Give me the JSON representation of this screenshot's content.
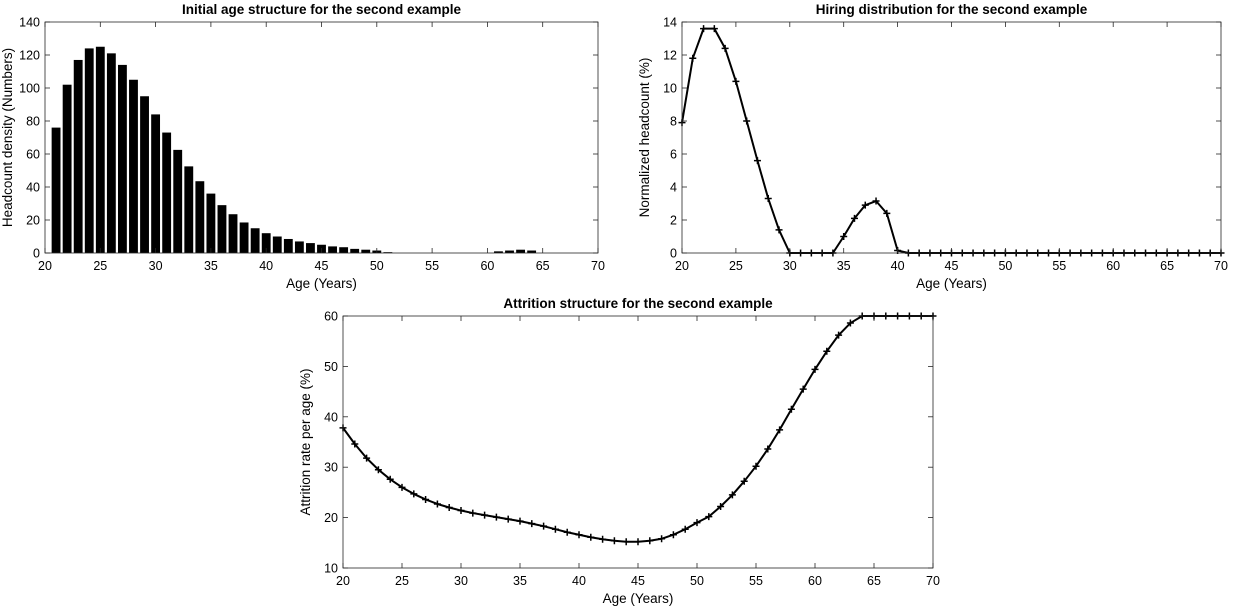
{
  "colors": {
    "background": "#ffffff",
    "ink": "#000000"
  },
  "chart_data": [
    {
      "type": "bar",
      "title": "Initial age structure for the second example",
      "xlabel": "Age (Years)",
      "ylabel": "Headcount density (Numbers)",
      "xlim": [
        20,
        70
      ],
      "ylim": [
        0,
        140
      ],
      "xticks": [
        20,
        25,
        30,
        35,
        40,
        45,
        50,
        55,
        60,
        65,
        70
      ],
      "yticks": [
        0,
        20,
        40,
        60,
        80,
        100,
        120,
        140
      ],
      "grid": false,
      "x": [
        21,
        22,
        23,
        24,
        25,
        26,
        27,
        28,
        29,
        30,
        31,
        32,
        33,
        34,
        35,
        36,
        37,
        38,
        39,
        40,
        41,
        42,
        43,
        44,
        45,
        46,
        47,
        48,
        49,
        50,
        51,
        52,
        53,
        54,
        55,
        56,
        57,
        58,
        59,
        60,
        61,
        62,
        63,
        64,
        65,
        66,
        67,
        68,
        69
      ],
      "values": [
        76,
        102,
        117,
        124,
        125,
        121,
        114,
        105,
        95,
        84,
        73,
        62.5,
        52.5,
        43.5,
        36,
        29,
        23.5,
        18.5,
        15,
        12,
        10,
        8.5,
        7,
        6,
        5,
        4,
        3.5,
        2.5,
        2,
        1.5,
        0.5,
        0,
        0,
        0,
        0,
        0,
        0,
        0,
        0,
        0,
        1,
        1.5,
        2,
        1.5,
        0,
        0,
        0,
        0,
        0
      ]
    },
    {
      "type": "line",
      "title": "Hiring distribution for the second example",
      "xlabel": "Age (Years)",
      "ylabel": "Normalized headcount (%)",
      "xlim": [
        20,
        70
      ],
      "ylim": [
        0,
        14
      ],
      "xticks": [
        20,
        25,
        30,
        35,
        40,
        45,
        50,
        55,
        60,
        65,
        70
      ],
      "yticks": [
        0,
        2,
        4,
        6,
        8,
        10,
        12,
        14
      ],
      "grid": false,
      "marker": "+",
      "x": [
        20,
        21,
        22,
        23,
        24,
        25,
        26,
        27,
        28,
        29,
        30,
        31,
        32,
        33,
        34,
        35,
        36,
        37,
        38,
        39,
        40,
        41,
        42,
        43,
        44,
        45,
        46,
        47,
        48,
        49,
        50,
        51,
        52,
        53,
        54,
        55,
        56,
        57,
        58,
        59,
        60,
        61,
        62,
        63,
        64,
        65,
        66,
        67,
        68,
        69,
        70
      ],
      "y": [
        7.9,
        11.8,
        13.6,
        13.6,
        12.4,
        10.4,
        8.0,
        5.6,
        3.3,
        1.4,
        0,
        0,
        0,
        0,
        0,
        1.0,
        2.1,
        2.9,
        3.15,
        2.4,
        0.15,
        0,
        0,
        0,
        0,
        0,
        0,
        0,
        0,
        0,
        0,
        0,
        0,
        0,
        0,
        0,
        0,
        0,
        0,
        0,
        0,
        0,
        0,
        0,
        0,
        0,
        0,
        0,
        0,
        0,
        0
      ]
    },
    {
      "type": "line",
      "title": "Attrition structure for the second example",
      "xlabel": "Age (Years)",
      "ylabel": "Attrition rate per age (%)",
      "xlim": [
        20,
        70
      ],
      "ylim": [
        10,
        60
      ],
      "xticks": [
        20,
        25,
        30,
        35,
        40,
        45,
        50,
        55,
        60,
        65,
        70
      ],
      "yticks": [
        10,
        20,
        30,
        40,
        50,
        60
      ],
      "grid": false,
      "marker": "+",
      "x": [
        20,
        21,
        22,
        23,
        24,
        25,
        26,
        27,
        28,
        29,
        30,
        31,
        32,
        33,
        34,
        35,
        36,
        37,
        38,
        39,
        40,
        41,
        42,
        43,
        44,
        45,
        46,
        47,
        48,
        49,
        50,
        51,
        52,
        53,
        54,
        55,
        56,
        57,
        58,
        59,
        60,
        61,
        62,
        63,
        64,
        65,
        66,
        67,
        68,
        69,
        70
      ],
      "y": [
        37.8,
        34.6,
        31.8,
        29.5,
        27.6,
        26.0,
        24.7,
        23.6,
        22.7,
        22.0,
        21.4,
        20.9,
        20.5,
        20.1,
        19.7,
        19.3,
        18.8,
        18.3,
        17.7,
        17.1,
        16.6,
        16.1,
        15.7,
        15.4,
        15.2,
        15.2,
        15.4,
        15.8,
        16.6,
        17.7,
        19.0,
        20.2,
        22.2,
        24.5,
        27.2,
        30.2,
        33.6,
        37.4,
        41.5,
        45.5,
        49.4,
        53.0,
        56.2,
        58.6,
        60,
        60,
        60,
        60,
        60,
        60,
        60
      ]
    }
  ]
}
